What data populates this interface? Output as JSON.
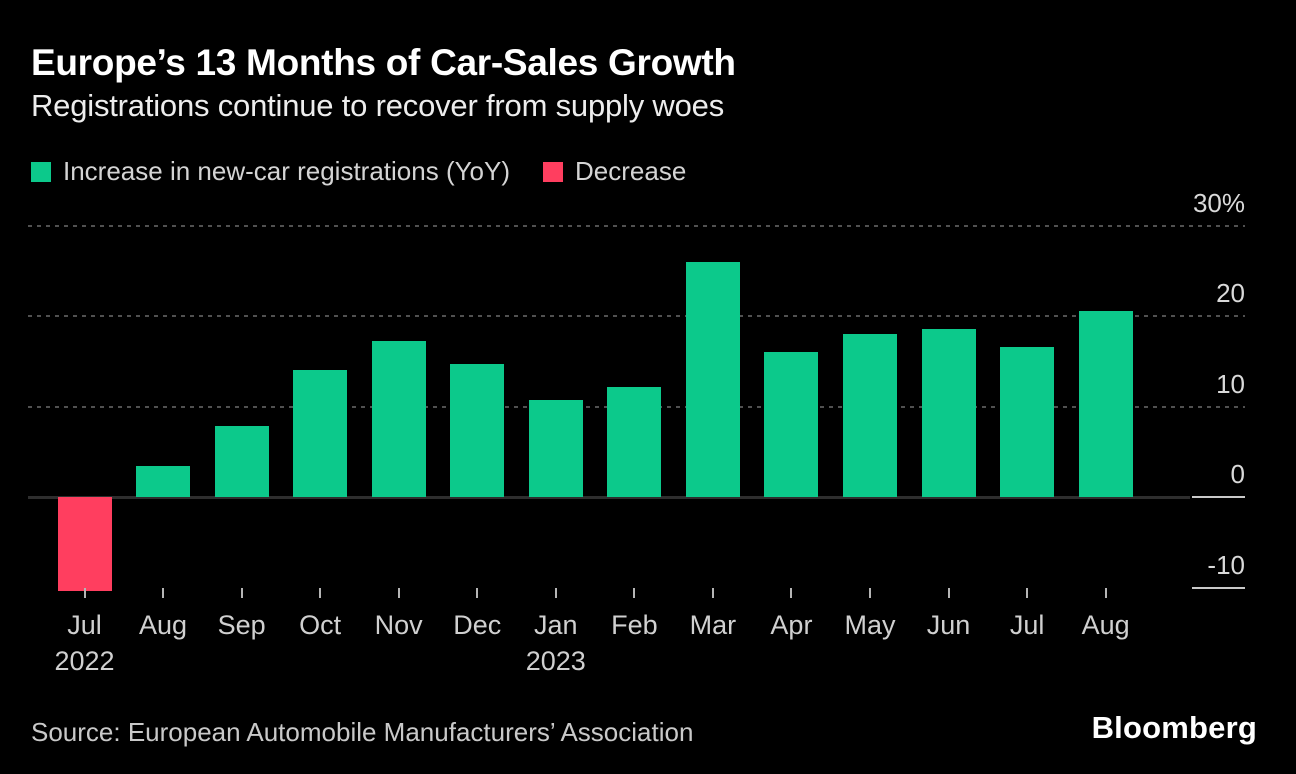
{
  "header": {
    "title": "Europe’s 13 Months of Car-Sales Growth",
    "subtitle": "Registrations continue to recover from supply woes"
  },
  "legend": {
    "increase_label": "Increase in new-car registrations (YoY)",
    "decrease_label": "Decrease"
  },
  "colors": {
    "background": "#000000",
    "increase": "#0cc98b",
    "decrease": "#ff3e5f",
    "grid": "#515151",
    "zero_line": "#2e2e2e",
    "axis_highlight": "#c9c9c9",
    "text_primary": "#ffffff",
    "text_secondary": "#d4d4d4"
  },
  "chart_data": {
    "type": "bar",
    "title": "Europe’s 13 Months of Car-Sales Growth",
    "subtitle": "Registrations continue to recover from supply woes",
    "unit": "%",
    "categories": [
      "Jul 2022",
      "Aug 2022",
      "Sep 2022",
      "Oct 2022",
      "Nov 2022",
      "Dec 2022",
      "Jan 2023",
      "Feb 2023",
      "Mar 2023",
      "Apr 2023",
      "May 2023",
      "Jun 2023",
      "Jul 2023",
      "Aug 2023"
    ],
    "x_tick_labels": [
      [
        "Jul",
        "2022"
      ],
      [
        "Aug"
      ],
      [
        "Sep"
      ],
      [
        "Oct"
      ],
      [
        "Nov"
      ],
      [
        "Dec"
      ],
      [
        "Jan",
        "2023"
      ],
      [
        "Feb"
      ],
      [
        "Mar"
      ],
      [
        "Apr"
      ],
      [
        "May"
      ],
      [
        "Jun"
      ],
      [
        "Jul"
      ],
      [
        "Aug"
      ]
    ],
    "values": [
      -10.4,
      3.4,
      7.9,
      14.0,
      17.2,
      14.7,
      10.7,
      12.1,
      26.0,
      16.0,
      18.0,
      18.6,
      16.6,
      20.6
    ],
    "series": [
      {
        "name": "Increase in new-car registrations (YoY)",
        "rule": "positive values",
        "color": "#0cc98b"
      },
      {
        "name": "Decrease",
        "rule": "negative values",
        "color": "#ff3e5f"
      }
    ],
    "y_ticks": [
      {
        "label": "30%",
        "value": 30
      },
      {
        "label": "20",
        "value": 20
      },
      {
        "label": "10",
        "value": 10
      },
      {
        "label": "0",
        "value": 0
      },
      {
        "label": "-10",
        "value": -10
      }
    ],
    "ylim": [
      -13,
      33
    ],
    "grid": "dotted horizontal lines at 10, 20, 30; solid baseline at 0",
    "legend_position": "top-left",
    "y_axis_position": "right"
  },
  "footer": {
    "source": "Source: European Automobile Manufacturers’ Association",
    "brand": "Bloomberg"
  }
}
